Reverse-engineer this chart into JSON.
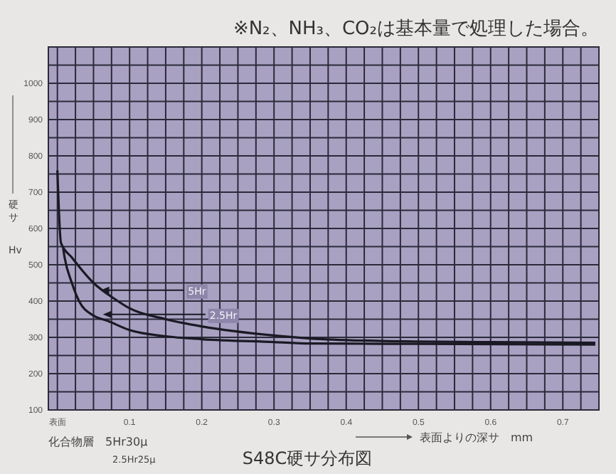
{
  "chart_data": {
    "type": "line",
    "title": "※N₂、NH₃、CO₂は基本量で処理した場合。",
    "subtitle": "S48C硬サ分布図",
    "xlabel": "表面よりの深サ　mm",
    "ylabel": "硬サ Hv",
    "xlim": [
      -0.0125,
      0.75
    ],
    "ylim": [
      100,
      1100
    ],
    "xticks": [
      {
        "value": 0,
        "label": "表面"
      },
      {
        "value": 0.025,
        "label": null
      },
      {
        "value": 0.05,
        "label": null
      },
      {
        "value": 0.075,
        "label": null
      },
      0.1,
      {
        "value": 0.125,
        "label": null
      },
      {
        "value": 0.15,
        "label": null
      },
      {
        "value": 0.175,
        "label": null
      },
      0.2,
      {
        "value": 0.225,
        "label": null
      },
      {
        "value": 0.25,
        "label": null
      },
      {
        "value": 0.275,
        "label": null
      },
      0.3,
      {
        "value": 0.325,
        "label": null
      },
      {
        "value": 0.35,
        "label": null
      },
      {
        "value": 0.375,
        "label": null
      },
      0.4,
      {
        "value": 0.425,
        "label": null
      },
      {
        "value": 0.45,
        "label": null
      },
      {
        "value": 0.475,
        "label": null
      },
      0.5,
      {
        "value": 0.525,
        "label": null
      },
      {
        "value": 0.55,
        "label": null
      },
      {
        "value": 0.575,
        "label": null
      },
      0.6,
      {
        "value": 0.625,
        "label": null
      },
      {
        "value": 0.65,
        "label": null
      },
      {
        "value": 0.675,
        "label": null
      },
      0.7,
      {
        "value": 0.725,
        "label": null
      }
    ],
    "yticks": [
      100,
      {
        "value": 150,
        "label": null
      },
      200,
      {
        "value": 250,
        "label": null
      },
      300,
      {
        "value": 350,
        "label": null
      },
      400,
      {
        "value": 450,
        "label": null
      },
      500,
      {
        "value": 550,
        "label": null
      },
      600,
      {
        "value": 650,
        "label": null
      },
      700,
      {
        "value": 750,
        "label": null
      },
      800,
      {
        "value": 850,
        "label": null
      },
      900,
      {
        "value": 950,
        "label": null
      },
      1000,
      {
        "value": 1050,
        "label": null
      }
    ],
    "grid": true,
    "marker": "none",
    "line_style": "solid",
    "series": [
      {
        "color": "#1a1a24",
        "x": [
          0,
          0.005,
          0.02,
          0.05,
          0.08,
          0.1,
          0.15,
          0.2,
          0.3,
          0.35,
          0.45,
          0.6,
          0.745
        ],
        "values": [
          760,
          560,
          520,
          450,
          405,
          380,
          350,
          330,
          305,
          297,
          290,
          287,
          285
        ]
      },
      {
        "color": "#1a1a24",
        "x": [
          0.008,
          0.01,
          0.02,
          0.03,
          0.05,
          0.07,
          0.1,
          0.15,
          0.2,
          0.3,
          0.35,
          0.5,
          0.745
        ],
        "values": [
          545,
          520,
          450,
          400,
          360,
          345,
          320,
          303,
          295,
          287,
          283,
          282,
          280
        ]
      }
    ],
    "annotations": [
      {
        "text": "5Hr",
        "x": 0.06,
        "y": 430
      },
      {
        "text": "2.5Hr",
        "x": 0.063,
        "y": 363
      },
      "化合物層　5Hr30μ",
      "2.5Hr25μ"
    ]
  }
}
